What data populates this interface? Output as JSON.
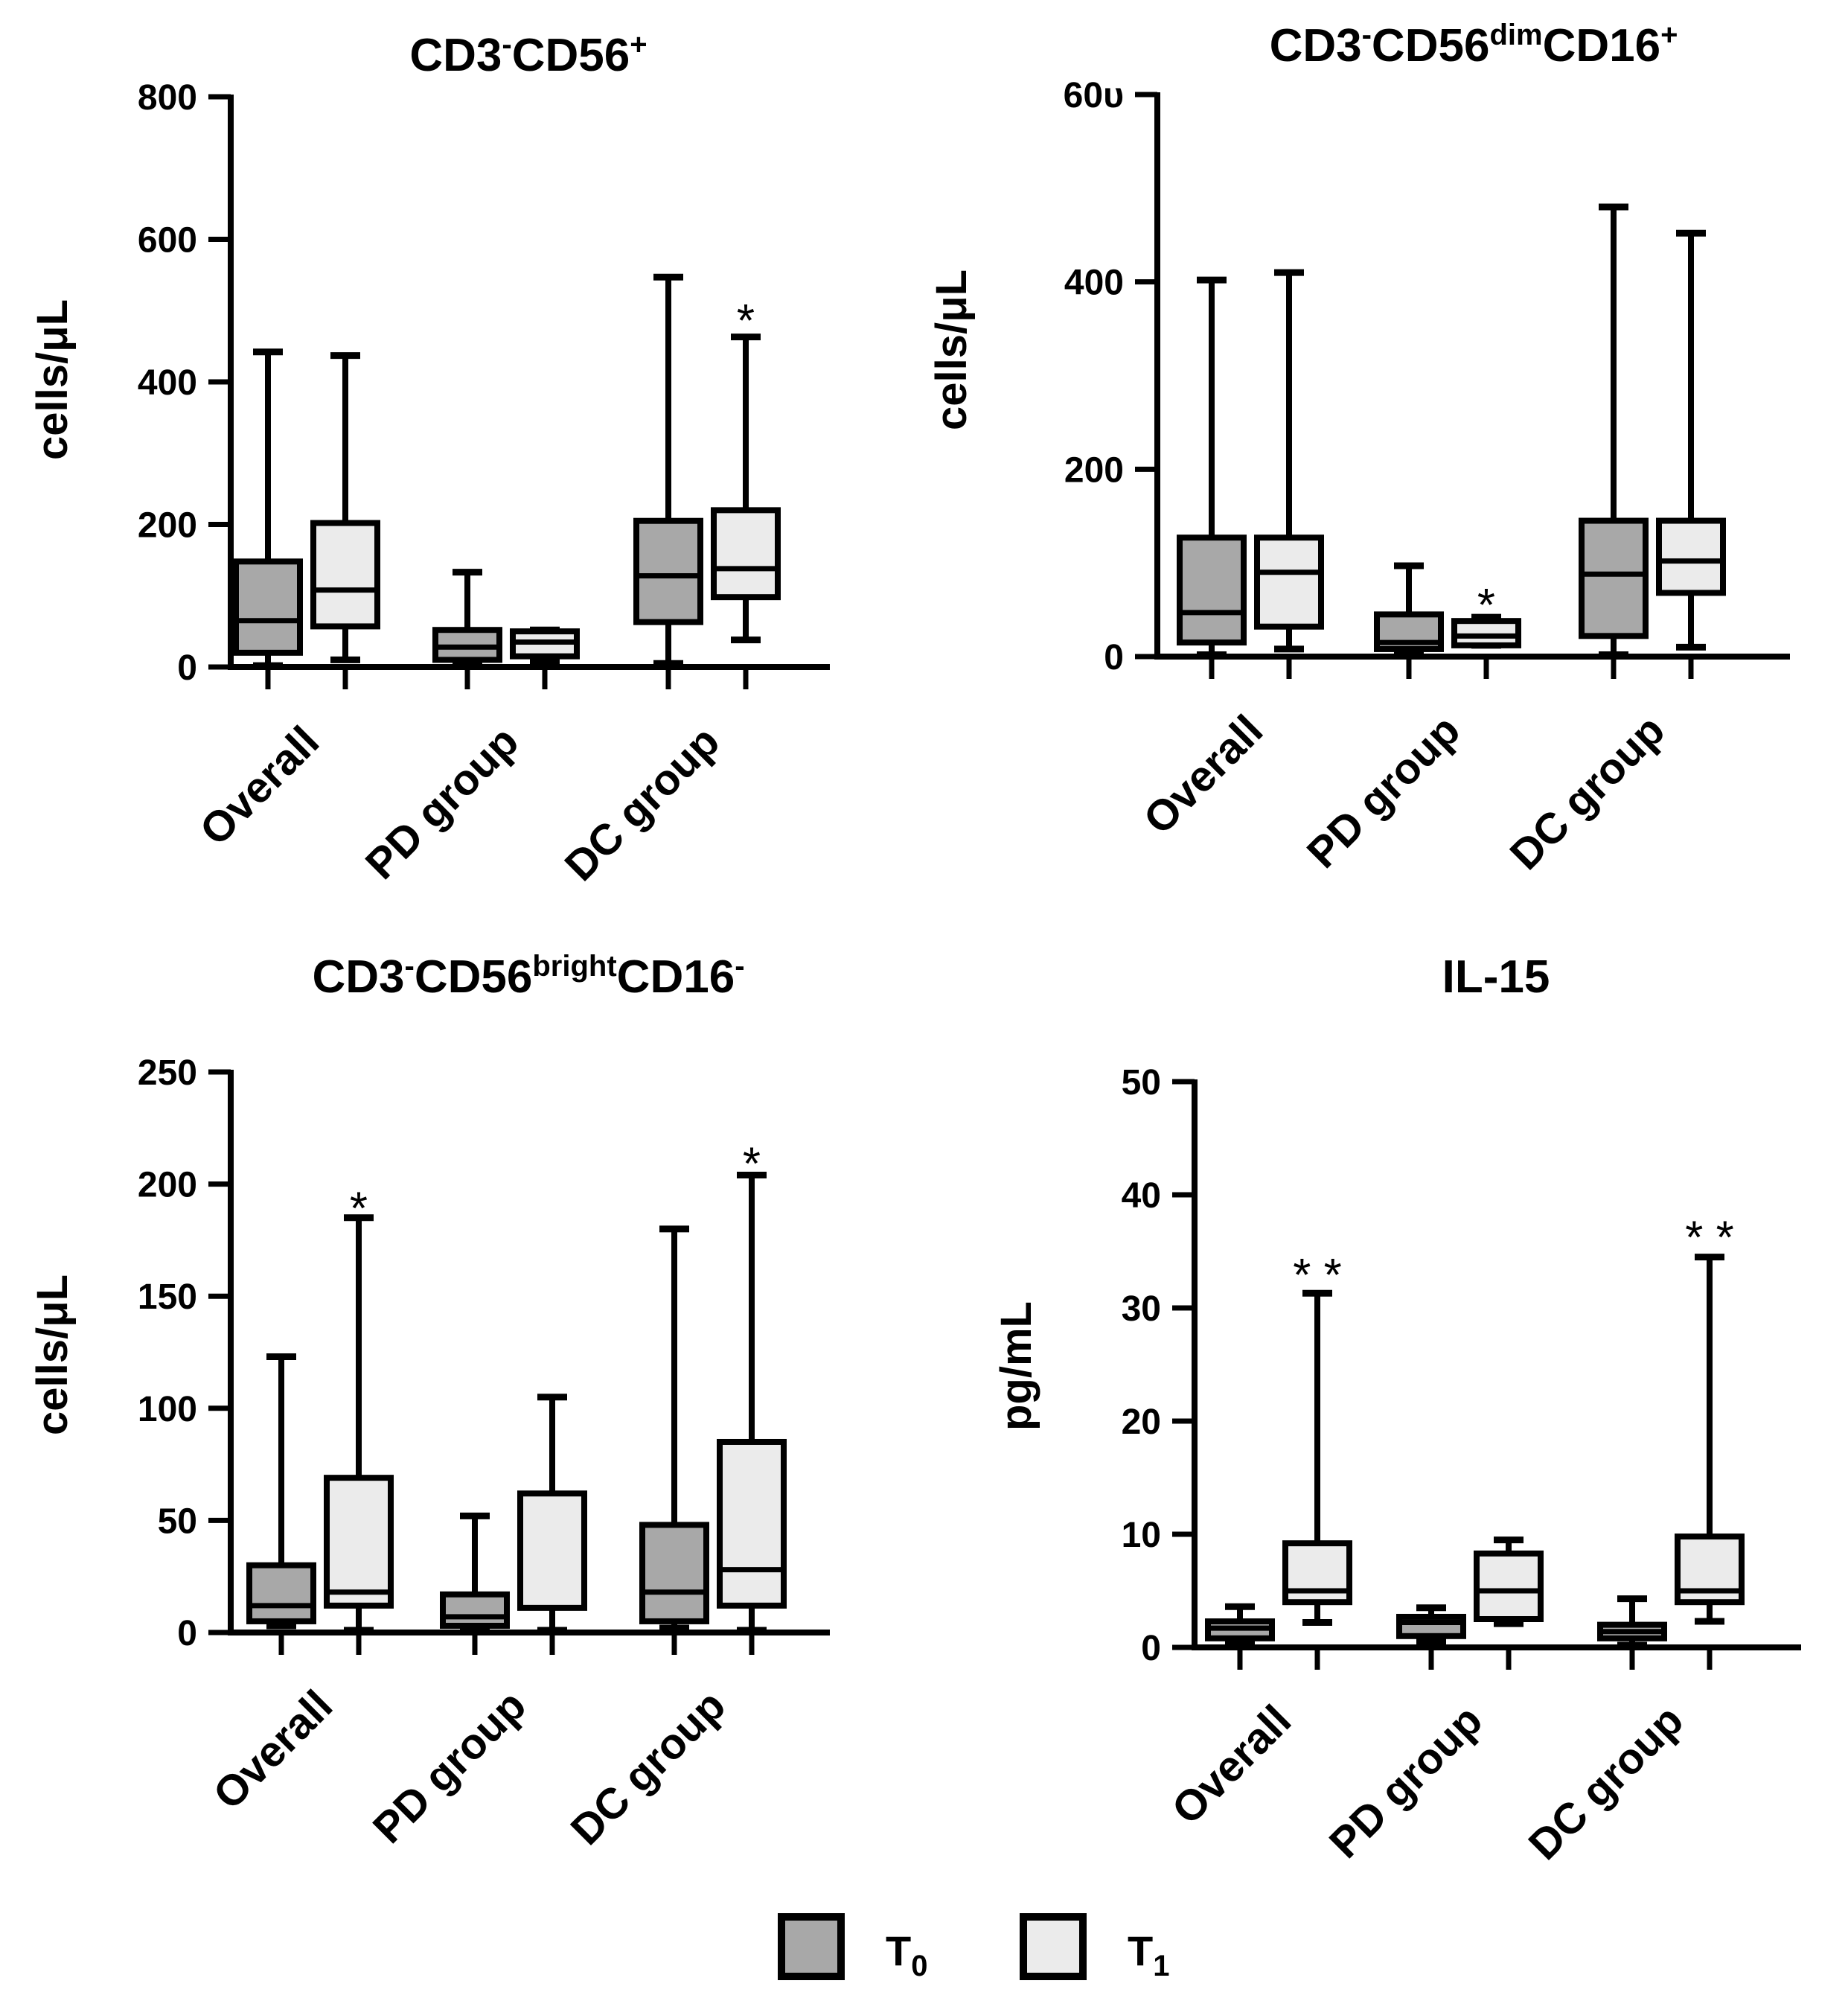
{
  "chart_data": [
    {
      "type": "box",
      "title": {
        "main": "CD3",
        "sup1": "-",
        "main2": "CD56",
        "sup2": "+",
        "main3": "",
        "sup3": ""
      },
      "ylabel": "cells/μL",
      "ylim": [
        0,
        800
      ],
      "yticks": [
        "0",
        "200",
        "400",
        "600",
        "800"
      ],
      "categories": [
        "Overall",
        "PD group",
        "DC group"
      ],
      "series": [
        {
          "group": "T0",
          "boxes": [
            {
              "min": 2,
              "q1": 20,
              "median": 65,
              "q3": 148,
              "max": 442
            },
            {
              "min": 5,
              "q1": 10,
              "median": 28,
              "q3": 52,
              "max": 133
            },
            {
              "min": 5,
              "q1": 63,
              "median": 128,
              "q3": 205,
              "max": 547
            }
          ]
        },
        {
          "group": "T1",
          "boxes": [
            {
              "min": 10,
              "q1": 57,
              "median": 108,
              "q3": 202,
              "max": 437
            },
            {
              "min": 8,
              "q1": 15,
              "median": 35,
              "q3": 50,
              "max": 52
            },
            {
              "min": 38,
              "q1": 98,
              "median": 138,
              "q3": 220,
              "max": 463
            }
          ]
        }
      ],
      "markers": [
        {
          "label": "*",
          "category": 2,
          "group": "T1",
          "at": 495
        }
      ]
    },
    {
      "type": "box",
      "title": {
        "main": "CD3",
        "sup1": "-",
        "main2": "CD56",
        "sup2": "dim",
        "main3": "CD16",
        "sup3": "+"
      },
      "ylabel": "cells/μL",
      "ylim": [
        0,
        600
      ],
      "yticks": [
        "0",
        "200",
        "400",
        "60υ"
      ],
      "categories": [
        "Overall",
        "PD group",
        "DC group"
      ],
      "series": [
        {
          "group": "T0",
          "boxes": [
            {
              "min": 2,
              "q1": 15,
              "median": 47,
              "q3": 127,
              "max": 402
            },
            {
              "min": 2,
              "q1": 8,
              "median": 15,
              "q3": 45,
              "max": 97
            },
            {
              "min": 2,
              "q1": 22,
              "median": 88,
              "q3": 145,
              "max": 480
            }
          ]
        },
        {
          "group": "T1",
          "boxes": [
            {
              "min": 8,
              "q1": 32,
              "median": 90,
              "q3": 127,
              "max": 410
            },
            {
              "min": 12,
              "q1": 12,
              "median": 22,
              "q3": 38,
              "max": 42
            },
            {
              "min": 10,
              "q1": 68,
              "median": 102,
              "q3": 145,
              "max": 452
            }
          ]
        }
      ],
      "markers": [
        {
          "label": "*",
          "category": 1,
          "group": "T1",
          "at": 62
        }
      ]
    },
    {
      "type": "box",
      "title": {
        "main": "CD3",
        "sup1": "-",
        "main2": "CD56",
        "sup2": "bright",
        "main3": "CD16",
        "sup3": "-"
      },
      "ylabel": "cells/μL",
      "ylim": [
        0,
        250
      ],
      "yticks": [
        "0",
        "50",
        "100",
        "150",
        "200",
        "250"
      ],
      "categories": [
        "Overall",
        "PD group",
        "DC group"
      ],
      "series": [
        {
          "group": "T0",
          "boxes": [
            {
              "min": 3,
              "q1": 5,
              "median": 12,
              "q3": 30,
              "max": 123
            },
            {
              "min": 2,
              "q1": 3,
              "median": 7,
              "q3": 17,
              "max": 52
            },
            {
              "min": 2,
              "q1": 5,
              "median": 18,
              "q3": 48,
              "max": 180
            }
          ]
        },
        {
          "group": "T1",
          "boxes": [
            {
              "min": 1,
              "q1": 12,
              "median": 18,
              "q3": 69,
              "max": 185
            },
            {
              "min": 1,
              "q1": 11,
              "median": 11,
              "q3": 62,
              "max": 105
            },
            {
              "min": 1,
              "q1": 12,
              "median": 28,
              "q3": 85,
              "max": 204
            }
          ]
        }
      ],
      "markers": [
        {
          "label": "*",
          "category": 0,
          "group": "T1",
          "at": 192
        },
        {
          "label": "*",
          "category": 2,
          "group": "T1",
          "at": 212
        }
      ]
    },
    {
      "type": "box",
      "title": {
        "main": "IL-15",
        "sup1": "",
        "main2": "",
        "sup2": "",
        "main3": "",
        "sup3": ""
      },
      "ylabel": "pg/mL",
      "ylim": [
        0,
        50
      ],
      "yticks": [
        "0",
        "10",
        "20",
        "30",
        "40",
        "50"
      ],
      "categories": [
        "Overall",
        "PD group",
        "DC group"
      ],
      "series": [
        {
          "group": "T0",
          "boxes": [
            {
              "min": 0.3,
              "q1": 0.8,
              "median": 1.7,
              "q3": 2.3,
              "max": 3.6
            },
            {
              "min": 0.5,
              "q1": 1.0,
              "median": 2.2,
              "q3": 2.7,
              "max": 3.5
            },
            {
              "min": 0.2,
              "q1": 0.8,
              "median": 1.4,
              "q3": 2.0,
              "max": 4.3
            }
          ]
        },
        {
          "group": "T1",
          "boxes": [
            {
              "min": 2.2,
              "q1": 4.0,
              "median": 5.0,
              "q3": 9.2,
              "max": 31.3
            },
            {
              "min": 2.1,
              "q1": 2.5,
              "median": 5.0,
              "q3": 8.3,
              "max": 9.5
            },
            {
              "min": 2.3,
              "q1": 4.0,
              "median": 5.0,
              "q3": 9.8,
              "max": 34.5
            }
          ]
        }
      ],
      "markers": [
        {
          "label": "* *",
          "category": 0,
          "group": "T1",
          "at": 33.5
        },
        {
          "label": "* *",
          "category": 2,
          "group": "T1",
          "at": 36.8
        }
      ]
    }
  ],
  "legend": {
    "items": [
      {
        "label": "T",
        "sub": "0",
        "color": "#a8a8a8"
      },
      {
        "label": "T",
        "sub": "1",
        "color": "#ebebeb"
      }
    ]
  }
}
